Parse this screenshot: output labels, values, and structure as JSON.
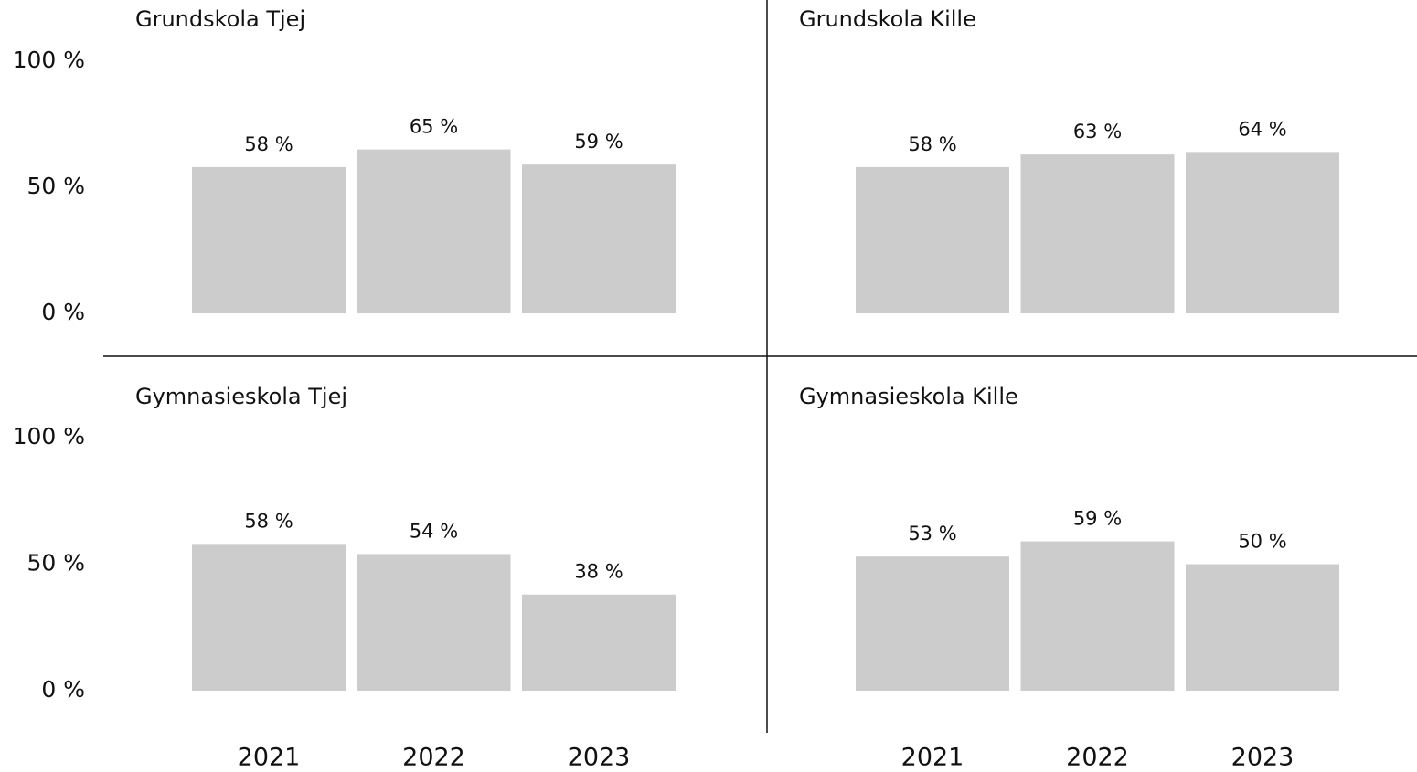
{
  "chart_data": [
    {
      "type": "bar",
      "title": "Grundskola Tjej",
      "values": [
        58,
        65,
        59
      ],
      "value_labels": [
        "58 %",
        "65 %",
        "59 %"
      ],
      "color": "#cccccc",
      "ylim": [
        0,
        100
      ],
      "yticks": [
        {
          "value": 0,
          "label": "0 %"
        },
        {
          "value": 50,
          "label": "50 %"
        },
        {
          "value": 100,
          "label": "100 %"
        }
      ]
    },
    {
      "type": "bar",
      "title": "Grundskola Kille",
      "values": [
        58,
        63,
        64
      ],
      "value_labels": [
        "58 %",
        "63 %",
        "64 %"
      ],
      "color": "#cccccc",
      "ylim": [
        0,
        100
      ]
    },
    {
      "type": "bar",
      "title": "Gymnasieskola Tjej",
      "categories": [
        "2021",
        "2022",
        "2023"
      ],
      "values": [
        58,
        54,
        38
      ],
      "value_labels": [
        "58 %",
        "54 %",
        "38 %"
      ],
      "color": "#cccccc",
      "ylim": [
        0,
        100
      ],
      "yticks": [
        {
          "value": 0,
          "label": "0 %"
        },
        {
          "value": 50,
          "label": "50 %"
        },
        {
          "value": 100,
          "label": "100 %"
        }
      ]
    },
    {
      "type": "bar",
      "title": "Gymnasieskola Kille",
      "categories": [
        "2021",
        "2022",
        "2023"
      ],
      "values": [
        53,
        59,
        50
      ],
      "value_labels": [
        "53 %",
        "59 %",
        "50 %"
      ],
      "color": "#cccccc",
      "ylim": [
        0,
        100
      ]
    }
  ]
}
